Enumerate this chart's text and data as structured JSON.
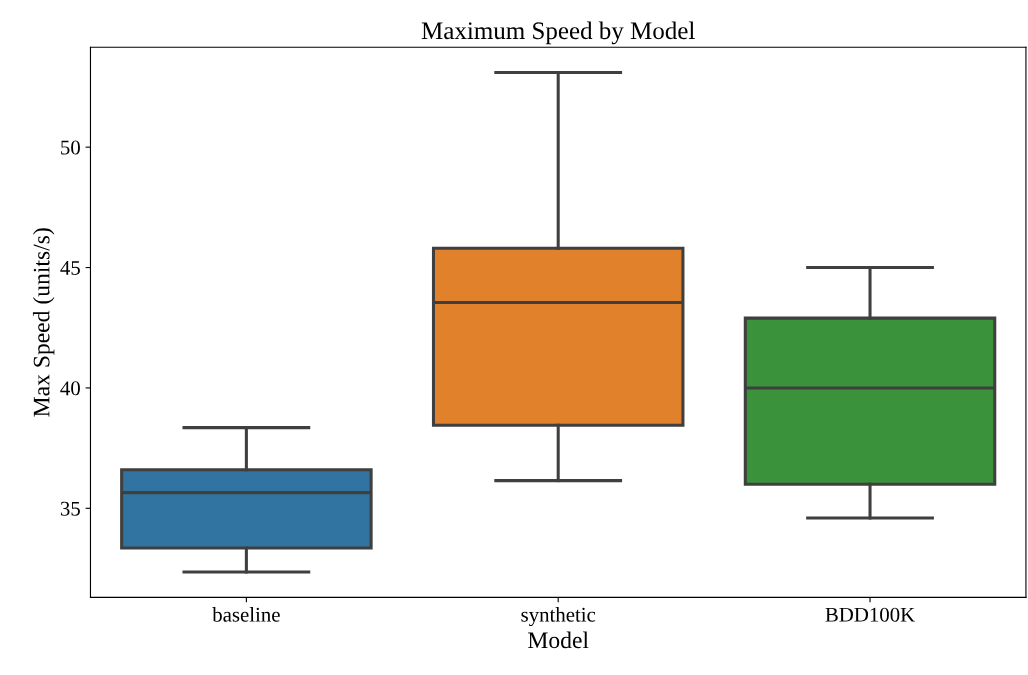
{
  "chart_data": {
    "type": "box",
    "title": "Maximum Speed by Model",
    "xlabel": "Model",
    "ylabel": "Max Speed (units/s)",
    "categories": [
      "baseline",
      "synthetic",
      "BDD100K"
    ],
    "colors": [
      "#3274a1",
      "#e1812c",
      "#3a923a"
    ],
    "boxes": [
      {
        "low": 32.35,
        "q1": 33.35,
        "median": 35.65,
        "q3": 36.6,
        "high": 38.35
      },
      {
        "low": 36.15,
        "q1": 38.45,
        "median": 43.55,
        "q3": 45.8,
        "high": 53.1
      },
      {
        "low": 34.6,
        "q1": 36.0,
        "median": 40.0,
        "q3": 42.9,
        "high": 45.0
      }
    ],
    "ylim": [
      31.3,
      54.15
    ],
    "yticks": [
      35,
      40,
      45,
      50
    ],
    "grid": false,
    "legend": false
  }
}
